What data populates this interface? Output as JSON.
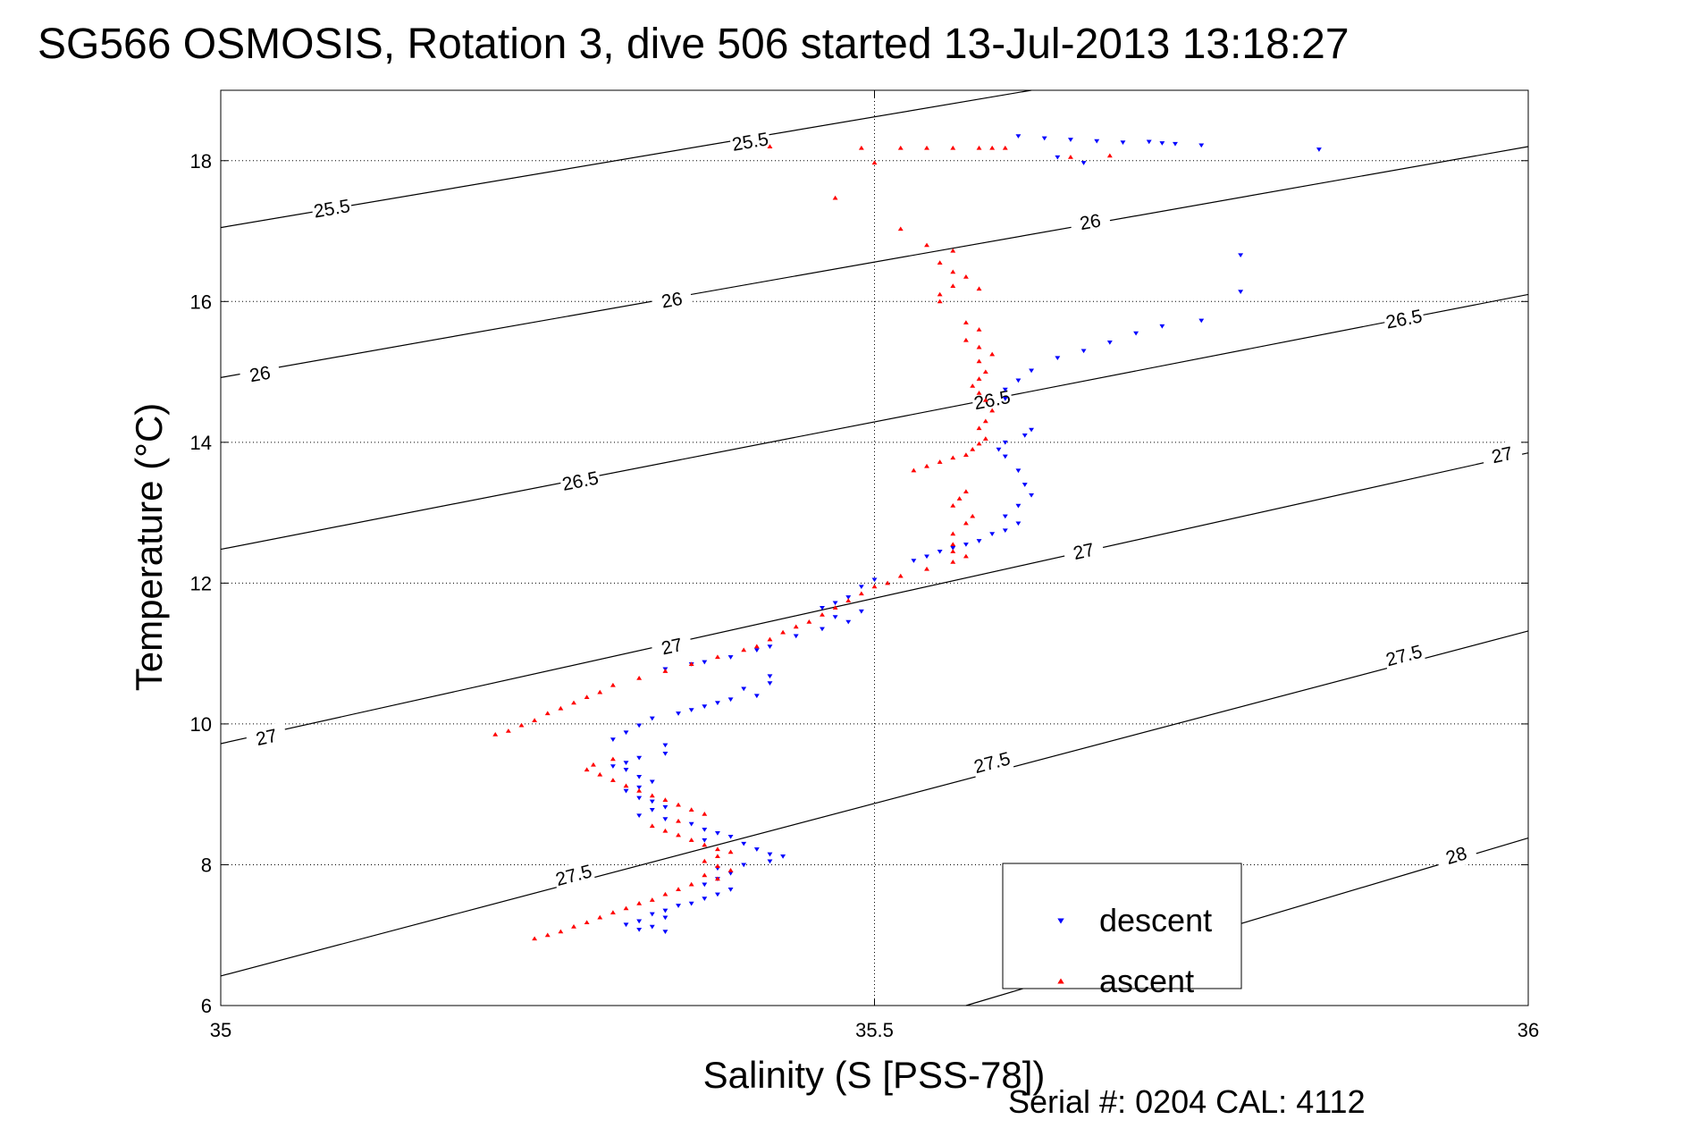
{
  "chart_data": {
    "type": "scatter",
    "title": "SG566 OSMOSIS, Rotation 3, dive 506 started 13-Jul-2013 13:18:27",
    "xlabel": "Salinity (S [PSS-78])",
    "ylabel": "Temperature (°C)",
    "xlim": [
      35,
      36
    ],
    "ylim": [
      6,
      19
    ],
    "x_ticks": [
      35,
      35.5,
      36
    ],
    "x_tick_labels": [
      "35",
      "35.5",
      "36"
    ],
    "y_ticks": [
      6,
      8,
      10,
      12,
      14,
      16,
      18
    ],
    "y_tick_labels": [
      "6",
      "8",
      "10",
      "12",
      "14",
      "16",
      "18"
    ],
    "grid": true,
    "legend_position": "bottom-right",
    "footer": "Serial #: 0204  CAL: 4112",
    "density_contours": [
      {
        "label": "25.5",
        "points": [
          [
            35,
            17.05
          ],
          [
            35.62,
            19.0
          ]
        ],
        "labels_at": [
          [
            35.085,
            17.32
          ],
          [
            35.405,
            18.27
          ]
        ]
      },
      {
        "label": "26",
        "points": [
          [
            35,
            14.92
          ],
          [
            36,
            18.2
          ]
        ],
        "labels_at": [
          [
            35.03,
            14.97
          ],
          [
            35.345,
            16.02
          ],
          [
            35.665,
            17.13
          ]
        ]
      },
      {
        "label": "26.5",
        "points": [
          [
            35,
            12.48
          ],
          [
            36,
            16.1
          ]
        ],
        "labels_at": [
          [
            35.275,
            13.45
          ],
          [
            35.59,
            14.6
          ],
          [
            35.905,
            15.75
          ]
        ]
      },
      {
        "label": "27",
        "points": [
          [
            35,
            9.72
          ],
          [
            36,
            13.85
          ]
        ],
        "labels_at": [
          [
            35.035,
            9.81
          ],
          [
            35.345,
            11.1
          ],
          [
            35.66,
            12.45
          ],
          [
            35.98,
            13.82
          ]
        ]
      },
      {
        "label": "27.5",
        "points": [
          [
            35,
            6.42
          ],
          [
            36,
            11.32
          ]
        ],
        "labels_at": [
          [
            35.27,
            7.85
          ],
          [
            35.59,
            9.45
          ],
          [
            35.905,
            10.97
          ]
        ]
      },
      {
        "label": "28",
        "points": [
          [
            35.57,
            6.0
          ],
          [
            36,
            8.38
          ]
        ],
        "labels_at": [
          [
            35.945,
            8.13
          ]
        ]
      }
    ],
    "series": [
      {
        "name": "descent",
        "color": "#0000ff",
        "marker": "triangle-down",
        "points": [
          [
            35.61,
            18.35
          ],
          [
            35.63,
            18.32
          ],
          [
            35.65,
            18.3
          ],
          [
            35.67,
            18.28
          ],
          [
            35.69,
            18.26
          ],
          [
            35.71,
            18.27
          ],
          [
            35.72,
            18.25
          ],
          [
            35.73,
            18.24
          ],
          [
            35.75,
            18.22
          ],
          [
            35.84,
            18.16
          ],
          [
            35.66,
            17.97
          ],
          [
            35.64,
            18.05
          ],
          [
            35.78,
            16.66
          ],
          [
            35.78,
            16.14
          ],
          [
            35.75,
            15.73
          ],
          [
            35.72,
            15.65
          ],
          [
            35.7,
            15.55
          ],
          [
            35.68,
            15.42
          ],
          [
            35.66,
            15.3
          ],
          [
            35.64,
            15.2
          ],
          [
            35.62,
            15.02
          ],
          [
            35.61,
            14.88
          ],
          [
            35.6,
            14.75
          ],
          [
            35.6,
            14.62
          ],
          [
            35.62,
            14.18
          ],
          [
            35.615,
            14.1
          ],
          [
            35.6,
            14.0
          ],
          [
            35.595,
            13.9
          ],
          [
            35.6,
            13.8
          ],
          [
            35.61,
            13.6
          ],
          [
            35.615,
            13.4
          ],
          [
            35.62,
            13.25
          ],
          [
            35.61,
            13.1
          ],
          [
            35.6,
            12.95
          ],
          [
            35.61,
            12.85
          ],
          [
            35.6,
            12.75
          ],
          [
            35.59,
            12.7
          ],
          [
            35.58,
            12.6
          ],
          [
            35.57,
            12.55
          ],
          [
            35.56,
            12.5
          ],
          [
            35.55,
            12.45
          ],
          [
            35.54,
            12.38
          ],
          [
            35.53,
            12.32
          ],
          [
            35.5,
            12.05
          ],
          [
            35.49,
            11.95
          ],
          [
            35.48,
            11.8
          ],
          [
            35.47,
            11.72
          ],
          [
            35.46,
            11.65
          ],
          [
            35.49,
            11.6
          ],
          [
            35.47,
            11.52
          ],
          [
            35.48,
            11.45
          ],
          [
            35.46,
            11.35
          ],
          [
            35.44,
            11.25
          ],
          [
            35.42,
            11.1
          ],
          [
            35.41,
            11.05
          ],
          [
            35.39,
            10.95
          ],
          [
            35.37,
            10.88
          ],
          [
            35.36,
            10.85
          ],
          [
            35.34,
            10.78
          ],
          [
            35.42,
            10.68
          ],
          [
            35.42,
            10.58
          ],
          [
            35.4,
            10.5
          ],
          [
            35.41,
            10.4
          ],
          [
            35.39,
            10.35
          ],
          [
            35.38,
            10.3
          ],
          [
            35.37,
            10.25
          ],
          [
            35.36,
            10.2
          ],
          [
            35.35,
            10.15
          ],
          [
            35.33,
            10.08
          ],
          [
            35.32,
            9.98
          ],
          [
            35.31,
            9.88
          ],
          [
            35.3,
            9.78
          ],
          [
            35.34,
            9.7
          ],
          [
            35.34,
            9.58
          ],
          [
            35.32,
            9.52
          ],
          [
            35.31,
            9.45
          ],
          [
            35.3,
            9.4
          ],
          [
            35.31,
            9.35
          ],
          [
            35.32,
            9.25
          ],
          [
            35.33,
            9.18
          ],
          [
            35.32,
            9.1
          ],
          [
            35.31,
            9.05
          ],
          [
            35.32,
            8.95
          ],
          [
            35.33,
            8.9
          ],
          [
            35.34,
            8.82
          ],
          [
            35.33,
            8.78
          ],
          [
            35.32,
            8.7
          ],
          [
            35.34,
            8.65
          ],
          [
            35.36,
            8.58
          ],
          [
            35.37,
            8.5
          ],
          [
            35.38,
            8.45
          ],
          [
            35.39,
            8.4
          ],
          [
            35.37,
            8.35
          ],
          [
            35.4,
            8.3
          ],
          [
            35.41,
            8.22
          ],
          [
            35.42,
            8.15
          ],
          [
            35.43,
            8.12
          ],
          [
            35.42,
            8.05
          ],
          [
            35.4,
            8.0
          ],
          [
            35.38,
            7.95
          ],
          [
            35.39,
            7.88
          ],
          [
            35.38,
            7.8
          ],
          [
            35.37,
            7.72
          ],
          [
            35.39,
            7.65
          ],
          [
            35.38,
            7.58
          ],
          [
            35.37,
            7.52
          ],
          [
            35.36,
            7.45
          ],
          [
            35.35,
            7.42
          ],
          [
            35.34,
            7.35
          ],
          [
            35.33,
            7.3
          ],
          [
            35.34,
            7.25
          ],
          [
            35.32,
            7.2
          ],
          [
            35.31,
            7.15
          ],
          [
            35.33,
            7.12
          ],
          [
            35.32,
            7.08
          ],
          [
            35.34,
            7.05
          ]
        ]
      },
      {
        "name": "ascent",
        "color": "#ff0000",
        "marker": "triangle-up",
        "points": [
          [
            35.49,
            18.18
          ],
          [
            35.52,
            18.18
          ],
          [
            35.54,
            18.18
          ],
          [
            35.56,
            18.18
          ],
          [
            35.58,
            18.18
          ],
          [
            35.59,
            18.18
          ],
          [
            35.6,
            18.18
          ],
          [
            35.42,
            18.2
          ],
          [
            35.5,
            17.97
          ],
          [
            35.68,
            18.07
          ],
          [
            35.65,
            18.05
          ],
          [
            35.47,
            17.47
          ],
          [
            35.52,
            17.03
          ],
          [
            35.54,
            16.8
          ],
          [
            35.56,
            16.72
          ],
          [
            35.55,
            16.55
          ],
          [
            35.56,
            16.42
          ],
          [
            35.57,
            16.35
          ],
          [
            35.56,
            16.22
          ],
          [
            35.58,
            16.18
          ],
          [
            35.55,
            16.1
          ],
          [
            35.55,
            16.0
          ],
          [
            35.57,
            15.7
          ],
          [
            35.58,
            15.6
          ],
          [
            35.57,
            15.45
          ],
          [
            35.58,
            15.35
          ],
          [
            35.59,
            15.25
          ],
          [
            35.58,
            15.15
          ],
          [
            35.585,
            15.0
          ],
          [
            35.58,
            14.9
          ],
          [
            35.575,
            14.8
          ],
          [
            35.58,
            14.7
          ],
          [
            35.585,
            14.6
          ],
          [
            35.59,
            14.45
          ],
          [
            35.585,
            14.3
          ],
          [
            35.58,
            14.2
          ],
          [
            35.585,
            14.05
          ],
          [
            35.58,
            13.98
          ],
          [
            35.575,
            13.9
          ],
          [
            35.57,
            13.82
          ],
          [
            35.56,
            13.78
          ],
          [
            35.55,
            13.72
          ],
          [
            35.54,
            13.66
          ],
          [
            35.53,
            13.6
          ],
          [
            35.57,
            13.3
          ],
          [
            35.565,
            13.2
          ],
          [
            35.56,
            13.1
          ],
          [
            35.575,
            12.95
          ],
          [
            35.57,
            12.85
          ],
          [
            35.56,
            12.7
          ],
          [
            35.56,
            12.55
          ],
          [
            35.56,
            12.45
          ],
          [
            35.57,
            12.38
          ],
          [
            35.56,
            12.3
          ],
          [
            35.54,
            12.2
          ],
          [
            35.52,
            12.1
          ],
          [
            35.51,
            12.0
          ],
          [
            35.5,
            11.95
          ],
          [
            35.49,
            11.85
          ],
          [
            35.48,
            11.75
          ],
          [
            35.47,
            11.65
          ],
          [
            35.46,
            11.55
          ],
          [
            35.45,
            11.45
          ],
          [
            35.44,
            11.38
          ],
          [
            35.43,
            11.3
          ],
          [
            35.42,
            11.2
          ],
          [
            35.41,
            11.1
          ],
          [
            35.4,
            11.05
          ],
          [
            35.38,
            10.95
          ],
          [
            35.36,
            10.85
          ],
          [
            35.34,
            10.75
          ],
          [
            35.32,
            10.65
          ],
          [
            35.3,
            10.55
          ],
          [
            35.29,
            10.45
          ],
          [
            35.28,
            10.38
          ],
          [
            35.27,
            10.3
          ],
          [
            35.26,
            10.22
          ],
          [
            35.25,
            10.15
          ],
          [
            35.24,
            10.05
          ],
          [
            35.23,
            9.98
          ],
          [
            35.22,
            9.9
          ],
          [
            35.21,
            9.85
          ],
          [
            35.3,
            9.5
          ],
          [
            35.285,
            9.42
          ],
          [
            35.28,
            9.35
          ],
          [
            35.29,
            9.28
          ],
          [
            35.3,
            9.2
          ],
          [
            35.31,
            9.12
          ],
          [
            35.32,
            9.05
          ],
          [
            35.33,
            8.98
          ],
          [
            35.34,
            8.92
          ],
          [
            35.35,
            8.85
          ],
          [
            35.36,
            8.78
          ],
          [
            35.37,
            8.72
          ],
          [
            35.35,
            8.62
          ],
          [
            35.33,
            8.55
          ],
          [
            35.34,
            8.48
          ],
          [
            35.35,
            8.42
          ],
          [
            35.36,
            8.35
          ],
          [
            35.37,
            8.28
          ],
          [
            35.38,
            8.22
          ],
          [
            35.39,
            8.18
          ],
          [
            35.38,
            8.12
          ],
          [
            35.37,
            8.05
          ],
          [
            35.38,
            7.98
          ],
          [
            35.39,
            7.92
          ],
          [
            35.37,
            7.85
          ],
          [
            35.38,
            7.8
          ],
          [
            35.36,
            7.72
          ],
          [
            35.35,
            7.65
          ],
          [
            35.34,
            7.58
          ],
          [
            35.33,
            7.5
          ],
          [
            35.32,
            7.45
          ],
          [
            35.31,
            7.38
          ],
          [
            35.3,
            7.32
          ],
          [
            35.29,
            7.25
          ],
          [
            35.28,
            7.18
          ],
          [
            35.27,
            7.12
          ],
          [
            35.26,
            7.05
          ],
          [
            35.25,
            7.0
          ],
          [
            35.24,
            6.95
          ]
        ]
      }
    ]
  }
}
